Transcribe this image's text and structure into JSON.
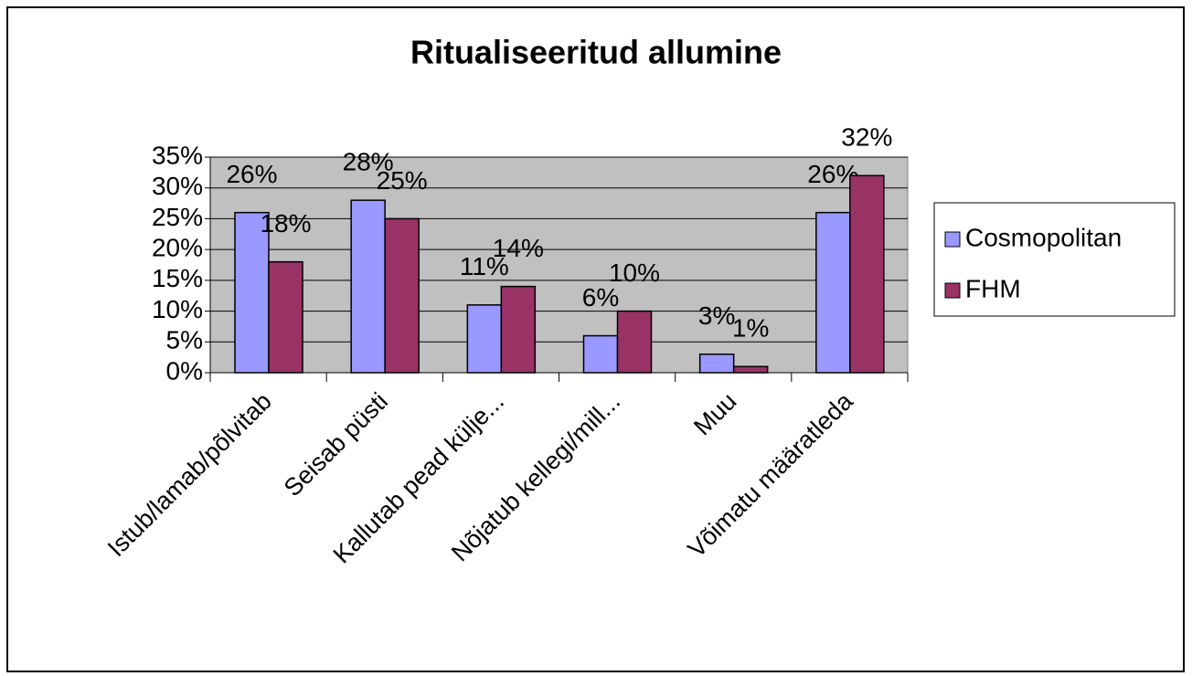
{
  "chart_data": {
    "type": "bar",
    "title": "Ritualiseeritud allumine",
    "categories": [
      "Istub/lamab/põlvitab",
      "Seisab püsti",
      "Kallutab pead külje...",
      "Nõjatub kellegi/mill...",
      "Muu",
      "Võimatu määratleda"
    ],
    "series": [
      {
        "name": "Cosmopolitan",
        "color": "#9999ff",
        "values": [
          26,
          28,
          11,
          6,
          3,
          26
        ],
        "value_labels": [
          "26%",
          "28%",
          "11%",
          "6%",
          "3%",
          "26%"
        ]
      },
      {
        "name": "FHM",
        "color": "#993366",
        "values": [
          18,
          25,
          14,
          10,
          1,
          32
        ],
        "value_labels": [
          "18%",
          "25%",
          "14%",
          "10%",
          "1%",
          "32%"
        ]
      }
    ],
    "ylim": [
      0,
      35
    ],
    "yticks": [
      {
        "value": 0,
        "label": "0%"
      },
      {
        "value": 5,
        "label": "5%"
      },
      {
        "value": 10,
        "label": "10%"
      },
      {
        "value": 15,
        "label": "15%"
      },
      {
        "value": 20,
        "label": "20%"
      },
      {
        "value": 25,
        "label": "25%"
      },
      {
        "value": 30,
        "label": "30%"
      },
      {
        "value": 35,
        "label": "35%"
      }
    ],
    "grid": true,
    "legend": "right"
  }
}
